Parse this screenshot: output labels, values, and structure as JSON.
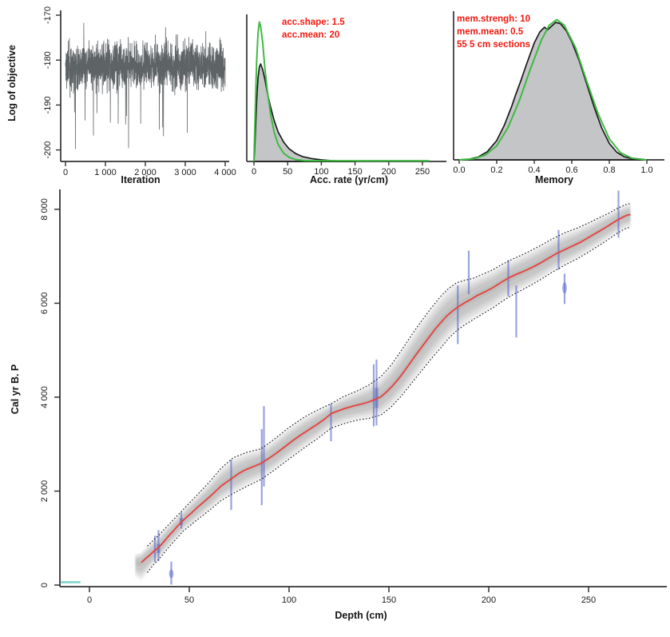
{
  "figure": {
    "background": "#ffffff"
  },
  "colors": {
    "trace": "#5e6366",
    "density_fill": "#c3c5c7",
    "density_outline": "#1b1b1b",
    "prior_green": "#3fba41",
    "median_red": "#e8403c",
    "annotation_red": "#f2190f",
    "date_blue": "#5868c8",
    "surface_teal": "#7fd4cf",
    "axis": "#333333",
    "bound_dotted": "#1a1a1a"
  },
  "chart_data": [
    {
      "id": "trace",
      "type": "line",
      "xlabel": "Iteration",
      "ylabel": "Log of objective",
      "xlim": [
        0,
        4100
      ],
      "ylim": [
        -201,
        -169
      ],
      "x_ticks": [
        {
          "v": 0,
          "label": "0"
        },
        {
          "v": 1000,
          "label": "1 000"
        },
        {
          "v": 2000,
          "label": "2 000"
        },
        {
          "v": 3000,
          "label": "3 000"
        },
        {
          "v": 4000,
          "label": "4 000"
        }
      ],
      "y_ticks": [
        {
          "v": -170,
          "label": "-170"
        },
        {
          "v": -180,
          "label": "-180"
        },
        {
          "v": -190,
          "label": "-190"
        },
        {
          "v": -200,
          "label": "-200"
        }
      ],
      "trace": {
        "iterations": 4000,
        "n_points": 1500,
        "mean": -181.3,
        "typical_range": [
          -188,
          -174
        ],
        "extremes": [
          -200,
          -171
        ],
        "seed": 11,
        "forced_spikes": [
          [
            250,
            -199.8
          ],
          [
            1580,
            -199.6
          ],
          [
            700,
            -196.8
          ],
          [
            2350,
            -195.5
          ],
          [
            3050,
            -196.2
          ]
        ]
      }
    },
    {
      "id": "acc_rate",
      "type": "area",
      "xlabel": "Acc. rate (yr/cm)",
      "annotations": [
        "acc.shape: 1.5",
        "acc.mean: 20"
      ],
      "xlim": [
        -5,
        265
      ],
      "x_ticks": [
        {
          "v": 0,
          "label": "0"
        },
        {
          "v": 50,
          "label": "50"
        },
        {
          "v": 100,
          "label": "100"
        },
        {
          "v": 150,
          "label": "150"
        },
        {
          "v": 200,
          "label": "200"
        },
        {
          "v": 250,
          "label": "250"
        }
      ],
      "posterior": [
        [
          0,
          0
        ],
        [
          1,
          0.1
        ],
        [
          2,
          0.28
        ],
        [
          4,
          0.62
        ],
        [
          6,
          0.86
        ],
        [
          8,
          0.97
        ],
        [
          10,
          1.0
        ],
        [
          13,
          0.94
        ],
        [
          16,
          0.85
        ],
        [
          20,
          0.7
        ],
        [
          25,
          0.55
        ],
        [
          30,
          0.42
        ],
        [
          36,
          0.3
        ],
        [
          44,
          0.2
        ],
        [
          52,
          0.13
        ],
        [
          62,
          0.08
        ],
        [
          72,
          0.05
        ],
        [
          85,
          0.03
        ],
        [
          100,
          0.016
        ],
        [
          115,
          0.008
        ],
        [
          130,
          0.004
        ],
        [
          145,
          0.002
        ],
        [
          150,
          0.001
        ]
      ],
      "prior": [
        [
          0,
          0
        ],
        [
          1,
          0.18
        ],
        [
          2,
          0.38
        ],
        [
          4,
          0.72
        ],
        [
          6,
          0.92
        ],
        [
          8,
          1.0
        ],
        [
          10,
          0.97
        ],
        [
          13,
          0.85
        ],
        [
          16,
          0.68
        ],
        [
          20,
          0.5
        ],
        [
          25,
          0.33
        ],
        [
          30,
          0.21
        ],
        [
          36,
          0.12
        ],
        [
          44,
          0.06
        ],
        [
          52,
          0.03
        ],
        [
          62,
          0.013
        ],
        [
          75,
          0.006
        ],
        [
          90,
          0.005
        ],
        [
          140,
          0.005
        ],
        [
          260,
          0.005
        ]
      ],
      "prior_rel_height": 1.43
    },
    {
      "id": "memory",
      "type": "area",
      "xlabel": "Memory",
      "annotations": [
        "mem.strengh: 10",
        "mem.mean: 0.5",
        "55 5 cm sections"
      ],
      "xlim": [
        -0.02,
        1.05
      ],
      "x_ticks": [
        {
          "v": 0.0,
          "label": "0.0"
        },
        {
          "v": 0.2,
          "label": "0.2"
        },
        {
          "v": 0.4,
          "label": "0.4"
        },
        {
          "v": 0.6,
          "label": "0.6"
        },
        {
          "v": 0.8,
          "label": "0.8"
        },
        {
          "v": 1.0,
          "label": "1.0"
        }
      ],
      "posterior": [
        [
          0,
          0
        ],
        [
          0.05,
          0.004
        ],
        [
          0.1,
          0.02
        ],
        [
          0.15,
          0.06
        ],
        [
          0.2,
          0.14
        ],
        [
          0.24,
          0.25
        ],
        [
          0.28,
          0.39
        ],
        [
          0.3,
          0.47
        ],
        [
          0.33,
          0.58
        ],
        [
          0.36,
          0.7
        ],
        [
          0.4,
          0.85
        ],
        [
          0.43,
          0.93
        ],
        [
          0.455,
          0.965
        ],
        [
          0.47,
          0.945
        ],
        [
          0.49,
          0.97
        ],
        [
          0.515,
          1.0
        ],
        [
          0.54,
          0.99
        ],
        [
          0.57,
          0.94
        ],
        [
          0.6,
          0.86
        ],
        [
          0.64,
          0.72
        ],
        [
          0.68,
          0.55
        ],
        [
          0.72,
          0.38
        ],
        [
          0.76,
          0.23
        ],
        [
          0.8,
          0.12
        ],
        [
          0.84,
          0.055
        ],
        [
          0.88,
          0.022
        ],
        [
          0.92,
          0.008
        ],
        [
          0.96,
          0.002
        ],
        [
          1.0,
          0
        ]
      ],
      "prior": [
        [
          0,
          0
        ],
        [
          0.08,
          0.008
        ],
        [
          0.14,
          0.035
        ],
        [
          0.2,
          0.1
        ],
        [
          0.26,
          0.23
        ],
        [
          0.32,
          0.42
        ],
        [
          0.38,
          0.65
        ],
        [
          0.44,
          0.86
        ],
        [
          0.48,
          0.96
        ],
        [
          0.52,
          1.0
        ],
        [
          0.56,
          0.96
        ],
        [
          0.62,
          0.8
        ],
        [
          0.68,
          0.56
        ],
        [
          0.74,
          0.33
        ],
        [
          0.8,
          0.15
        ],
        [
          0.86,
          0.05
        ],
        [
          0.92,
          0.012
        ],
        [
          1.0,
          0
        ]
      ],
      "prior_rel_height": 1.02
    },
    {
      "id": "age_depth",
      "type": "line",
      "xlabel": "Depth (cm)",
      "ylabel": "Cal yr B. P",
      "xlim": [
        -15,
        289
      ],
      "ylim": [
        -100,
        8400
      ],
      "x_ticks": [
        {
          "v": 0,
          "label": "0"
        },
        {
          "v": 50,
          "label": "50"
        },
        {
          "v": 100,
          "label": "100"
        },
        {
          "v": 150,
          "label": "150"
        },
        {
          "v": 200,
          "label": "200"
        },
        {
          "v": 250,
          "label": "250"
        }
      ],
      "y_ticks": [
        {
          "v": 0,
          "label": "0"
        },
        {
          "v": 2000,
          "label": "2 000"
        },
        {
          "v": 4000,
          "label": "4 000"
        },
        {
          "v": 6000,
          "label": "6 000"
        },
        {
          "v": 8000,
          "label": "8 000"
        }
      ],
      "median": [
        [
          26,
          480
        ],
        [
          28,
          560
        ],
        [
          30,
          630
        ],
        [
          32,
          710
        ],
        [
          34,
          780
        ],
        [
          36,
          860
        ],
        [
          38,
          960
        ],
        [
          40,
          1060
        ],
        [
          42,
          1150
        ],
        [
          44,
          1250
        ],
        [
          46,
          1340
        ],
        [
          48,
          1420
        ],
        [
          51,
          1530
        ],
        [
          54,
          1650
        ],
        [
          57,
          1760
        ],
        [
          60,
          1870
        ],
        [
          63,
          1990
        ],
        [
          66,
          2110
        ],
        [
          69,
          2200
        ],
        [
          72,
          2290
        ],
        [
          75,
          2380
        ],
        [
          78,
          2450
        ],
        [
          82,
          2520
        ],
        [
          86,
          2590
        ],
        [
          90,
          2700
        ],
        [
          94,
          2820
        ],
        [
          98,
          2950
        ],
        [
          102,
          3080
        ],
        [
          106,
          3200
        ],
        [
          110,
          3310
        ],
        [
          114,
          3420
        ],
        [
          118,
          3540
        ],
        [
          121,
          3650
        ],
        [
          124,
          3700
        ],
        [
          128,
          3760
        ],
        [
          132,
          3810
        ],
        [
          136,
          3850
        ],
        [
          140,
          3900
        ],
        [
          143,
          3950
        ],
        [
          146,
          4010
        ],
        [
          149,
          4120
        ],
        [
          152,
          4250
        ],
        [
          155,
          4400
        ],
        [
          158,
          4570
        ],
        [
          161,
          4750
        ],
        [
          164,
          4930
        ],
        [
          167,
          5100
        ],
        [
          170,
          5270
        ],
        [
          173,
          5440
        ],
        [
          176,
          5590
        ],
        [
          179,
          5730
        ],
        [
          182,
          5840
        ],
        [
          185,
          5930
        ],
        [
          188,
          6010
        ],
        [
          191,
          6080
        ],
        [
          194,
          6160
        ],
        [
          198,
          6240
        ],
        [
          202,
          6330
        ],
        [
          206,
          6440
        ],
        [
          210,
          6540
        ],
        [
          214,
          6620
        ],
        [
          218,
          6690
        ],
        [
          222,
          6770
        ],
        [
          226,
          6860
        ],
        [
          230,
          6960
        ],
        [
          234,
          7060
        ],
        [
          238,
          7140
        ],
        [
          242,
          7220
        ],
        [
          246,
          7300
        ],
        [
          250,
          7400
        ],
        [
          254,
          7500
        ],
        [
          258,
          7600
        ],
        [
          261,
          7680
        ],
        [
          264,
          7760
        ],
        [
          267,
          7830
        ],
        [
          269,
          7870
        ],
        [
          271,
          7890
        ]
      ],
      "band": [
        [
          23,
          170,
          300
        ],
        [
          26,
          220,
          380
        ],
        [
          29,
          235,
          330
        ],
        [
          32,
          245,
          280
        ],
        [
          35,
          250,
          260
        ],
        [
          40,
          240,
          240
        ],
        [
          47,
          230,
          230
        ],
        [
          54,
          270,
          260
        ],
        [
          60,
          320,
          280
        ],
        [
          66,
          380,
          310
        ],
        [
          72,
          420,
          340
        ],
        [
          79,
          360,
          360
        ],
        [
          86,
          310,
          340
        ],
        [
          93,
          330,
          330
        ],
        [
          100,
          340,
          330
        ],
        [
          108,
          330,
          320
        ],
        [
          114,
          300,
          310
        ],
        [
          121,
          210,
          310
        ],
        [
          127,
          260,
          315
        ],
        [
          134,
          300,
          320
        ],
        [
          140,
          360,
          350
        ],
        [
          146,
          430,
          390
        ],
        [
          151,
          470,
          420
        ],
        [
          156,
          520,
          440
        ],
        [
          161,
          550,
          470
        ],
        [
          166,
          560,
          500
        ],
        [
          171,
          560,
          520
        ],
        [
          176,
          560,
          540
        ],
        [
          180,
          550,
          510
        ],
        [
          184,
          540,
          480
        ],
        [
          188,
          480,
          470
        ],
        [
          192,
          420,
          460
        ],
        [
          197,
          400,
          445
        ],
        [
          202,
          380,
          430
        ],
        [
          207,
          370,
          415
        ],
        [
          212,
          360,
          400
        ],
        [
          218,
          365,
          380
        ],
        [
          225,
          370,
          360
        ],
        [
          231,
          365,
          345
        ],
        [
          238,
          360,
          330
        ],
        [
          244,
          335,
          320
        ],
        [
          250,
          310,
          310
        ],
        [
          256,
          285,
          300
        ],
        [
          260,
          260,
          290
        ],
        [
          264,
          250,
          280
        ],
        [
          268,
          240,
          270
        ],
        [
          271,
          235,
          265
        ]
      ],
      "dates": [
        {
          "d": 32.8,
          "a0": 490,
          "a1": 1050
        },
        {
          "d": 34.6,
          "a0": 510,
          "a1": 1170,
          "core": [
            680,
            880
          ]
        },
        {
          "d": 41.0,
          "a0": 10,
          "a1": 500,
          "diamond": [
            150,
            330
          ]
        },
        {
          "d": 46.0,
          "a0": 1200,
          "a1": 1550,
          "core": [
            1280,
            1430
          ]
        },
        {
          "d": 71.0,
          "a0": 1600,
          "a1": 2670
        },
        {
          "d": 86.3,
          "a0": 1700,
          "a1": 3320
        },
        {
          "d": 87.4,
          "a0": 2100,
          "a1": 3810
        },
        {
          "d": 121.0,
          "a0": 3060,
          "a1": 3860
        },
        {
          "d": 142.4,
          "a0": 3380,
          "a1": 4700
        },
        {
          "d": 143.8,
          "a0": 3400,
          "a1": 4800,
          "core": [
            3770,
            4200
          ]
        },
        {
          "d": 184.5,
          "a0": 5130,
          "a1": 6380
        },
        {
          "d": 190.0,
          "a0": 6190,
          "a1": 7120
        },
        {
          "d": 209.8,
          "a0": 6150,
          "a1": 6920
        },
        {
          "d": 213.8,
          "a0": 5270,
          "a1": 6380
        },
        {
          "d": 235.0,
          "a0": 6715,
          "a1": 7560
        },
        {
          "d": 238.0,
          "a0": 5985,
          "a1": 6630,
          "diamond": [
            6205,
            6445
          ]
        },
        {
          "d": 265.0,
          "a0": 7395,
          "a1": 8400
        }
      ],
      "surface_date": {
        "d0": -14.5,
        "d1": -4.5,
        "age": 60
      }
    }
  ]
}
